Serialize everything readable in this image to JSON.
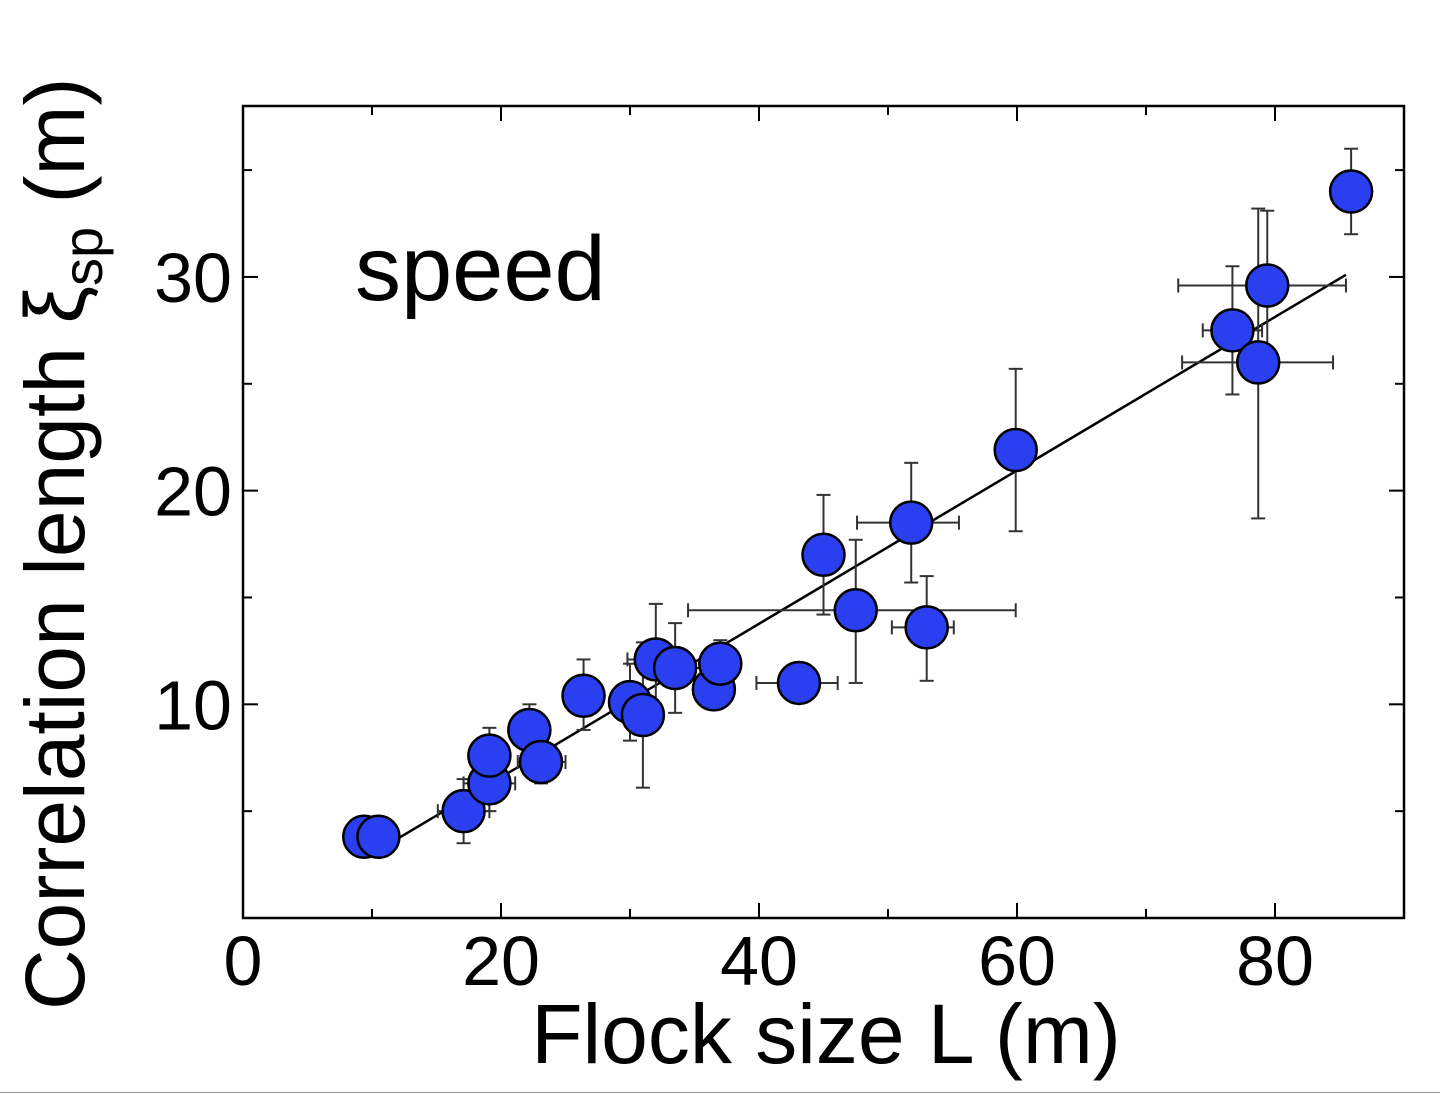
{
  "chart_data": {
    "type": "scatter",
    "annotation": "speed",
    "xlabel": "Flock size L (m)",
    "ylabel": {
      "prefix": "Correlation length ",
      "symbol": "ξ",
      "subscript": "sp",
      "suffix": " (m)"
    },
    "xlim": [
      0,
      90
    ],
    "ylim": [
      0,
      38
    ],
    "xticks": [
      0,
      20,
      40,
      60,
      80
    ],
    "xminor": [
      10,
      30,
      50,
      70
    ],
    "yticks": [
      10,
      20,
      30
    ],
    "yminor": [
      5,
      15,
      25,
      35
    ],
    "grid": false,
    "legend": "none",
    "colors": {
      "marker_fill": "#2a3ff0",
      "marker_edge": "#000000",
      "errorbar": "#333333",
      "fit_line": "#000000"
    },
    "fit_line": {
      "x": [
        10.0,
        85.5
      ],
      "y": [
        3.0,
        30.1
      ]
    },
    "points": [
      {
        "x": 9.4,
        "y": 3.8
      },
      {
        "x": 10.5,
        "y": 3.8
      },
      {
        "x": 17.1,
        "y": 5.0,
        "xerr": [
          15.1,
          19.1
        ],
        "yerr": [
          3.5,
          6.5
        ]
      },
      {
        "x": 19.1,
        "y": 6.3,
        "xerr": [
          17.1,
          21.1
        ],
        "yerr": [
          5.0,
          7.8
        ]
      },
      {
        "x": 19.1,
        "y": 7.6,
        "yerr": [
          6.3,
          8.9
        ]
      },
      {
        "x": 22.2,
        "y": 8.8,
        "yerr": [
          7.6,
          10.0
        ]
      },
      {
        "x": 23.1,
        "y": 7.3,
        "xerr": [
          21.3,
          25.0
        ],
        "yerr": [
          6.3,
          8.3
        ]
      },
      {
        "x": 26.4,
        "y": 10.4,
        "yerr": [
          8.8,
          12.1
        ]
      },
      {
        "x": 30.0,
        "y": 10.1,
        "yerr": [
          8.3,
          11.9
        ]
      },
      {
        "x": 31.0,
        "y": 9.5,
        "yerr": [
          6.1,
          12.9
        ]
      },
      {
        "x": 32.0,
        "y": 12.1,
        "xerr": [
          29.8,
          34.3
        ],
        "yerr": [
          9.6,
          14.7
        ]
      },
      {
        "x": 33.5,
        "y": 11.7,
        "xerr": [
          31.6,
          35.5
        ],
        "yerr": [
          9.6,
          13.8
        ]
      },
      {
        "x": 36.5,
        "y": 10.7,
        "yerr": [
          9.9,
          11.5
        ]
      },
      {
        "x": 37.0,
        "y": 11.9,
        "yerr": [
          10.8,
          13.0
        ]
      },
      {
        "x": 43.1,
        "y": 11.0,
        "xerr": [
          39.8,
          46.1
        ]
      },
      {
        "x": 45.0,
        "y": 17.0,
        "yerr": [
          14.2,
          19.8
        ]
      },
      {
        "x": 47.5,
        "y": 14.4,
        "xerr": [
          34.5,
          59.9
        ],
        "yerr": [
          11.0,
          17.7
        ]
      },
      {
        "x": 51.8,
        "y": 18.5,
        "xerr": [
          47.6,
          55.5
        ],
        "yerr": [
          15.7,
          21.3
        ]
      },
      {
        "x": 53.0,
        "y": 13.6,
        "xerr": [
          50.3,
          55.1
        ],
        "yerr": [
          11.1,
          16.0
        ]
      },
      {
        "x": 59.9,
        "y": 21.9,
        "yerr": [
          18.1,
          25.7
        ]
      },
      {
        "x": 76.7,
        "y": 27.5,
        "xerr": [
          74.4,
          79.0
        ],
        "yerr": [
          24.5,
          30.5
        ]
      },
      {
        "x": 78.7,
        "y": 26.0,
        "xerr": [
          72.8,
          84.5
        ],
        "yerr": [
          18.7,
          33.2
        ]
      },
      {
        "x": 79.4,
        "y": 29.6,
        "xerr": [
          72.5,
          85.5
        ],
        "yerr": [
          26.0,
          33.1
        ]
      },
      {
        "x": 85.9,
        "y": 34.0,
        "yerr": [
          32.0,
          36.0
        ]
      }
    ]
  }
}
